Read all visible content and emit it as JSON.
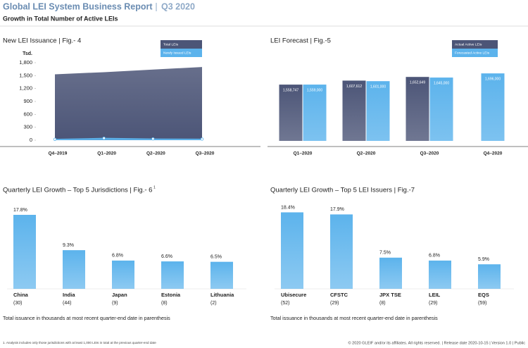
{
  "header": {
    "title": "Global LEI System Business Report",
    "period": "Q3 2020",
    "subtitle": "Growth in Total Number of Active LEIs"
  },
  "chart_data": [
    {
      "type": "area",
      "title": "New LEI Issuance | Fig.- 4",
      "y_unit": "Tsd.",
      "categories": [
        "Q4–2019",
        "Q1–2020",
        "Q2–2020",
        "Q3–2020"
      ],
      "series": [
        {
          "name": "Total LEIs",
          "color": "#4c5577",
          "values": [
            1530,
            1580,
            1640,
            1700
          ]
        },
        {
          "name": "Newly Issued LEIs",
          "color": "#5cb3ec",
          "values": [
            20,
            45,
            30,
            25
          ]
        }
      ],
      "ylim": [
        0,
        1800
      ],
      "yticks": [
        0,
        300,
        600,
        900,
        {
          "value": 1200,
          "label": "1,200"
        },
        {
          "value": 1500,
          "label": "1,500"
        },
        {
          "value": 1800,
          "label": "1,800"
        }
      ],
      "legend": "top-right"
    },
    {
      "type": "bar",
      "title": "LEI Forecast | Fig.-5",
      "categories": [
        "Q1–2020",
        "Q2–2020",
        "Q3–2020",
        "Q4–2020"
      ],
      "series": [
        {
          "name": "Actual Active LEIs",
          "color": "#4c5577",
          "values": [
            1558747,
            1607612,
            1652649,
            null
          ],
          "value_labels": [
            "1,558,747",
            "1,607,612",
            "1,652,649",
            null
          ]
        },
        {
          "name": "Forecasted Active LEIs",
          "color": "#5cb3ec",
          "values": [
            1559000,
            1601000,
            1645000,
            1696000
          ],
          "value_labels": [
            "1,559,000",
            "1,601,000",
            "1,645,000",
            "1,696,000"
          ]
        }
      ],
      "ylim": [
        870000,
        2120000
      ],
      "legend": "top-right"
    },
    {
      "type": "bar",
      "title": "Quarterly LEI Growth – Top 5 Jurisdictions | Fig.- 6",
      "title_note": "1",
      "categories": [
        "China",
        "India",
        "Japan",
        "Estonia",
        "Lithuania"
      ],
      "sublabels": [
        "(30)",
        "(44)",
        "(9)",
        "(8)",
        "(2)"
      ],
      "values": [
        17.8,
        9.3,
        6.8,
        6.6,
        6.5
      ],
      "value_labels": [
        "17.8%",
        "9.3%",
        "6.8%",
        "6.6%",
        "6.5%"
      ],
      "color": "#5cb3ec",
      "ylim": [
        0,
        20
      ],
      "note": "Total issuance in thousands at most recent quarter-end date in parenthesis"
    },
    {
      "type": "bar",
      "title": "Quarterly LEI Growth – Top 5 LEI Issuers | Fig.-7",
      "categories": [
        "Ubisecure",
        "CFSTC",
        "JPX TSE",
        "LEIL",
        "EQS"
      ],
      "sublabels": [
        "(52)",
        "(29)",
        "(8)",
        "(29)",
        "(59)"
      ],
      "values": [
        18.4,
        17.9,
        7.5,
        6.8,
        5.9
      ],
      "value_labels": [
        "18.4%",
        "17.9%",
        "7.5%",
        "6.8%",
        "5.9%"
      ],
      "color": "#5cb3ec",
      "ylim": [
        0,
        20
      ],
      "note": "Total issuance in thousands at most recent quarter-end date in parenthesis"
    }
  ],
  "footer": {
    "footnote": "1. Analysis includes only those jurisdictions with at least 1,000 LEIs in total at the previous quarter-end date",
    "copyright": "© 2020 GLEIF and/or its affiliates. All rights reserved.  |  Release date 2020-10-15  |  Version 1.0  |  Public"
  }
}
